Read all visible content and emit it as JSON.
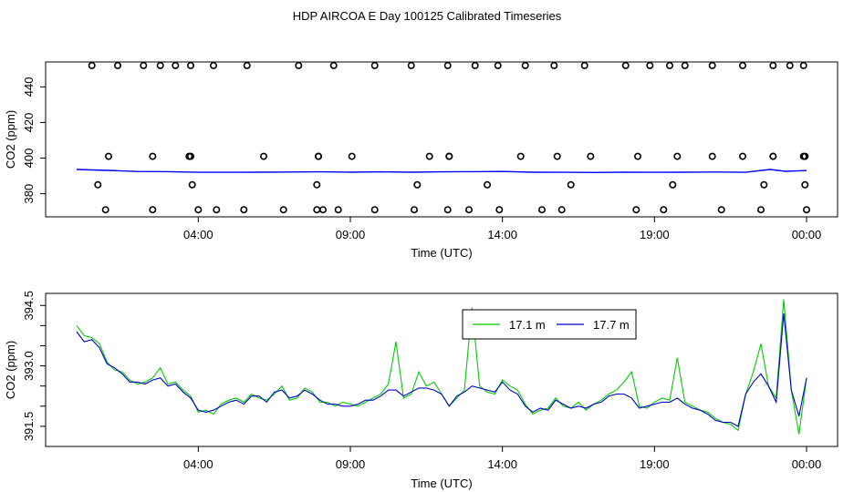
{
  "title": "HDP AIRCOA E  Day 100125  Calibrated Timeseries",
  "chart_data": [
    {
      "type": "scatter",
      "xlabel": "Time (UTC)",
      "ylabel": "CO2 (ppm)",
      "x_unit": "hours since 00:00",
      "xlim": [
        0,
        24
      ],
      "ylim": [
        367,
        454
      ],
      "xticks": [
        4,
        9,
        14,
        19,
        24
      ],
      "xtick_labels": [
        "04:00",
        "09:00",
        "14:00",
        "19:00",
        "00:00"
      ],
      "yticks": [
        380,
        400,
        420,
        440
      ],
      "ytick_labels": [
        "380",
        "400",
        "420",
        "440"
      ],
      "grid": false,
      "calibration_points": {
        "x": [
          0.5,
          1.35,
          2.2,
          2.75,
          3.25,
          3.75,
          4.5,
          5.6,
          7.3,
          8.45,
          9.8,
          11.0,
          12.2,
          13.1,
          13.85,
          14.75,
          15.7,
          16.7,
          18.05,
          18.85,
          19.5,
          20.0,
          20.9,
          21.9,
          22.9,
          23.45,
          23.9,
          1.05,
          2.5,
          3.7,
          3.75,
          6.15,
          7.95,
          7.95,
          9.05,
          11.6,
          12.25,
          12.25,
          14.6,
          15.8,
          16.9,
          18.45,
          19.75,
          20.9,
          21.9,
          22.9,
          22.9,
          23.9,
          23.95,
          0.7,
          3.8,
          7.9,
          11.2,
          13.5,
          16.25,
          19.6,
          22.6,
          23.95,
          0.95,
          2.5,
          4.0,
          4.6,
          5.5,
          6.8,
          7.9,
          8.1,
          8.6,
          9.8,
          11.1,
          12.2,
          12.9,
          13.9,
          15.3,
          15.95,
          18.4,
          19.3,
          21.2,
          22.5,
          24.0
        ],
        "y": [
          452,
          452,
          452,
          452,
          452,
          452,
          452,
          452,
          452,
          452,
          452,
          452,
          452,
          452,
          452,
          452,
          452,
          452,
          452,
          452,
          452,
          452,
          452,
          452,
          452,
          452,
          452,
          401,
          401,
          401,
          401,
          401,
          401,
          401,
          401,
          401,
          401,
          401,
          401,
          401,
          401,
          401,
          401,
          401,
          401,
          401,
          401,
          401,
          401,
          385,
          385,
          385,
          385,
          385,
          385,
          385,
          385,
          385,
          371,
          371,
          371,
          371,
          371,
          371,
          371,
          371,
          371,
          371,
          371,
          371,
          371,
          371,
          371,
          371,
          371,
          371,
          371,
          371,
          371
        ]
      },
      "series_line": {
        "color": "#0000ff",
        "x": [
          0,
          1,
          2,
          3,
          4,
          5,
          6,
          7,
          8,
          9,
          10,
          11,
          12,
          13,
          14,
          15,
          16,
          17,
          18,
          19,
          20,
          21,
          22,
          22.8,
          23.3,
          24
        ],
        "y": [
          393.6,
          393.1,
          392.5,
          392.4,
          392.0,
          392.0,
          392.1,
          392.2,
          392.3,
          392.1,
          392.3,
          392.1,
          392.3,
          392.4,
          392.5,
          392.1,
          392.0,
          391.9,
          392.1,
          392.0,
          392.1,
          392.2,
          392.0,
          393.6,
          392.6,
          393.0
        ]
      }
    },
    {
      "type": "line",
      "xlabel": "Time (UTC)",
      "ylabel": "CO2 (ppm)",
      "x_unit": "hours since 00:00",
      "xlim": [
        0,
        24
      ],
      "ylim": [
        391.0,
        394.8
      ],
      "xticks": [
        4,
        9,
        14,
        19,
        24
      ],
      "xtick_labels": [
        "04:00",
        "09:00",
        "14:00",
        "19:00",
        "00:00"
      ],
      "yticks": [
        391.5,
        392.0,
        392.5,
        393.0,
        393.5,
        394.0,
        394.5
      ],
      "ytick_labels": [
        "391.5",
        "",
        "",
        "393.0",
        "",
        "",
        "394.5"
      ],
      "grid": false,
      "legend": {
        "position": "top-center",
        "boxed": true
      },
      "series": [
        {
          "name": "17.1 m",
          "color": "#00cc00",
          "x": [
            0,
            0.25,
            0.5,
            0.75,
            1.0,
            1.25,
            1.5,
            1.75,
            2.0,
            2.25,
            2.5,
            2.75,
            3.0,
            3.25,
            3.5,
            3.75,
            4.0,
            4.25,
            4.5,
            4.75,
            5.0,
            5.25,
            5.5,
            5.75,
            6.0,
            6.25,
            6.5,
            6.75,
            7.0,
            7.25,
            7.5,
            7.75,
            8.0,
            8.25,
            8.5,
            8.75,
            9.0,
            9.25,
            9.5,
            9.75,
            10.0,
            10.25,
            10.5,
            10.75,
            11.0,
            11.25,
            11.5,
            11.75,
            12.0,
            12.25,
            12.5,
            12.75,
            13.0,
            13.25,
            13.5,
            13.75,
            14.0,
            14.25,
            14.5,
            14.75,
            15.0,
            15.25,
            15.5,
            15.75,
            16.0,
            16.25,
            16.5,
            16.75,
            17.0,
            17.25,
            17.5,
            17.75,
            18.0,
            18.25,
            18.5,
            18.75,
            19.0,
            19.25,
            19.5,
            19.75,
            20.0,
            20.25,
            20.5,
            20.75,
            21.0,
            21.25,
            21.5,
            21.75,
            22.0,
            22.25,
            22.5,
            22.75,
            23.0,
            23.25,
            23.5,
            23.75,
            24.0
          ],
          "y": [
            394.0,
            393.75,
            393.7,
            393.55,
            393.1,
            392.9,
            392.85,
            392.65,
            392.55,
            392.6,
            392.7,
            392.95,
            392.55,
            392.6,
            392.4,
            392.25,
            391.85,
            391.9,
            391.8,
            392.05,
            392.15,
            392.2,
            392.1,
            392.3,
            392.2,
            392.15,
            392.3,
            392.5,
            392.15,
            392.2,
            392.45,
            392.35,
            392.1,
            392.1,
            392.0,
            392.1,
            392.05,
            392.0,
            392.1,
            392.2,
            392.3,
            392.55,
            393.6,
            392.2,
            392.3,
            392.85,
            392.5,
            392.6,
            392.3,
            392.0,
            392.2,
            392.4,
            394.45,
            392.5,
            392.35,
            392.3,
            392.65,
            392.5,
            392.4,
            392.05,
            391.8,
            391.9,
            391.95,
            392.2,
            392.0,
            391.95,
            392.1,
            391.9,
            392.05,
            392.15,
            392.3,
            392.4,
            392.6,
            392.85,
            392.0,
            391.95,
            392.1,
            392.2,
            392.15,
            393.2,
            392.1,
            392.0,
            391.9,
            391.85,
            391.7,
            391.6,
            391.55,
            391.4,
            392.3,
            392.85,
            393.55,
            392.5,
            392.2,
            394.65,
            392.4,
            391.3,
            392.7
          ]
        },
        {
          "name": "17.7 m",
          "color": "#0000cc",
          "x": [
            0,
            0.25,
            0.5,
            0.75,
            1.0,
            1.25,
            1.5,
            1.75,
            2.0,
            2.25,
            2.5,
            2.75,
            3.0,
            3.25,
            3.5,
            3.75,
            4.0,
            4.25,
            4.5,
            4.75,
            5.0,
            5.25,
            5.5,
            5.75,
            6.0,
            6.25,
            6.5,
            6.75,
            7.0,
            7.25,
            7.5,
            7.75,
            8.0,
            8.25,
            8.5,
            8.75,
            9.0,
            9.25,
            9.5,
            9.75,
            10.0,
            10.25,
            10.5,
            10.75,
            11.0,
            11.25,
            11.5,
            11.75,
            12.0,
            12.25,
            12.5,
            12.75,
            13.0,
            13.25,
            13.5,
            13.75,
            14.0,
            14.25,
            14.5,
            14.75,
            15.0,
            15.25,
            15.5,
            15.75,
            16.0,
            16.25,
            16.5,
            16.75,
            17.0,
            17.25,
            17.5,
            17.75,
            18.0,
            18.25,
            18.5,
            18.75,
            19.0,
            19.25,
            19.5,
            19.75,
            20.0,
            20.25,
            20.5,
            20.75,
            21.0,
            21.25,
            21.5,
            21.75,
            22.0,
            22.25,
            22.5,
            22.75,
            23.0,
            23.25,
            23.5,
            23.75,
            24.0
          ],
          "y": [
            393.85,
            393.6,
            393.65,
            393.45,
            393.05,
            392.95,
            392.8,
            392.6,
            392.6,
            392.55,
            392.65,
            392.7,
            392.5,
            392.55,
            392.35,
            392.2,
            391.9,
            391.85,
            391.9,
            392.0,
            392.1,
            392.15,
            392.05,
            392.25,
            392.25,
            392.1,
            392.35,
            392.4,
            392.2,
            392.25,
            392.4,
            392.3,
            392.15,
            392.05,
            392.05,
            392.0,
            392.0,
            392.05,
            392.15,
            392.15,
            392.25,
            392.4,
            392.4,
            392.25,
            392.35,
            392.45,
            392.45,
            392.4,
            392.3,
            392.0,
            392.25,
            392.35,
            392.5,
            392.45,
            392.4,
            392.35,
            392.6,
            392.4,
            392.3,
            392.0,
            391.85,
            391.95,
            391.9,
            392.15,
            392.05,
            391.95,
            392.0,
            391.95,
            392.05,
            392.1,
            392.25,
            392.3,
            392.3,
            392.2,
            391.95,
            392.0,
            392.05,
            392.1,
            392.1,
            392.2,
            392.05,
            391.95,
            391.9,
            391.8,
            391.65,
            391.6,
            391.6,
            391.5,
            392.3,
            392.6,
            392.8,
            392.5,
            392.1,
            394.3,
            392.4,
            391.75,
            392.7
          ]
        }
      ]
    }
  ]
}
